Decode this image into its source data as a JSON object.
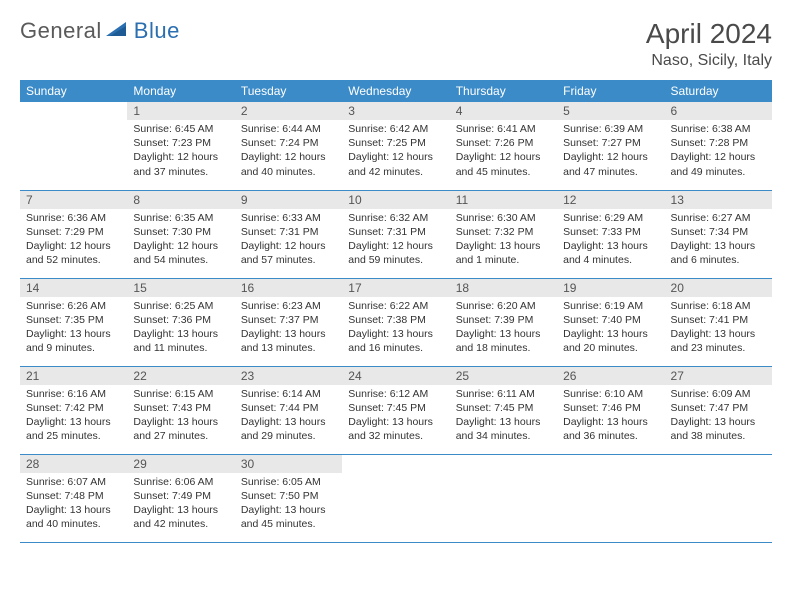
{
  "logo": {
    "text_a": "General",
    "text_b": "Blue"
  },
  "title": "April 2024",
  "location": "Naso, Sicily, Italy",
  "colors": {
    "header_bg": "#3b8bc9",
    "header_text": "#ffffff",
    "daynum_bg": "#e8e8e8",
    "daynum_text": "#555555",
    "body_text": "#333333",
    "rule": "#3b8bc9",
    "logo_gray": "#5a5a5a",
    "logo_blue": "#2b6fb0"
  },
  "day_labels": [
    "Sunday",
    "Monday",
    "Tuesday",
    "Wednesday",
    "Thursday",
    "Friday",
    "Saturday"
  ],
  "weeks": [
    [
      null,
      {
        "n": "1",
        "sr": "6:45 AM",
        "ss": "7:23 PM",
        "dl": "12 hours and 37 minutes."
      },
      {
        "n": "2",
        "sr": "6:44 AM",
        "ss": "7:24 PM",
        "dl": "12 hours and 40 minutes."
      },
      {
        "n": "3",
        "sr": "6:42 AM",
        "ss": "7:25 PM",
        "dl": "12 hours and 42 minutes."
      },
      {
        "n": "4",
        "sr": "6:41 AM",
        "ss": "7:26 PM",
        "dl": "12 hours and 45 minutes."
      },
      {
        "n": "5",
        "sr": "6:39 AM",
        "ss": "7:27 PM",
        "dl": "12 hours and 47 minutes."
      },
      {
        "n": "6",
        "sr": "6:38 AM",
        "ss": "7:28 PM",
        "dl": "12 hours and 49 minutes."
      }
    ],
    [
      {
        "n": "7",
        "sr": "6:36 AM",
        "ss": "7:29 PM",
        "dl": "12 hours and 52 minutes."
      },
      {
        "n": "8",
        "sr": "6:35 AM",
        "ss": "7:30 PM",
        "dl": "12 hours and 54 minutes."
      },
      {
        "n": "9",
        "sr": "6:33 AM",
        "ss": "7:31 PM",
        "dl": "12 hours and 57 minutes."
      },
      {
        "n": "10",
        "sr": "6:32 AM",
        "ss": "7:31 PM",
        "dl": "12 hours and 59 minutes."
      },
      {
        "n": "11",
        "sr": "6:30 AM",
        "ss": "7:32 PM",
        "dl": "13 hours and 1 minute."
      },
      {
        "n": "12",
        "sr": "6:29 AM",
        "ss": "7:33 PM",
        "dl": "13 hours and 4 minutes."
      },
      {
        "n": "13",
        "sr": "6:27 AM",
        "ss": "7:34 PM",
        "dl": "13 hours and 6 minutes."
      }
    ],
    [
      {
        "n": "14",
        "sr": "6:26 AM",
        "ss": "7:35 PM",
        "dl": "13 hours and 9 minutes."
      },
      {
        "n": "15",
        "sr": "6:25 AM",
        "ss": "7:36 PM",
        "dl": "13 hours and 11 minutes."
      },
      {
        "n": "16",
        "sr": "6:23 AM",
        "ss": "7:37 PM",
        "dl": "13 hours and 13 minutes."
      },
      {
        "n": "17",
        "sr": "6:22 AM",
        "ss": "7:38 PM",
        "dl": "13 hours and 16 minutes."
      },
      {
        "n": "18",
        "sr": "6:20 AM",
        "ss": "7:39 PM",
        "dl": "13 hours and 18 minutes."
      },
      {
        "n": "19",
        "sr": "6:19 AM",
        "ss": "7:40 PM",
        "dl": "13 hours and 20 minutes."
      },
      {
        "n": "20",
        "sr": "6:18 AM",
        "ss": "7:41 PM",
        "dl": "13 hours and 23 minutes."
      }
    ],
    [
      {
        "n": "21",
        "sr": "6:16 AM",
        "ss": "7:42 PM",
        "dl": "13 hours and 25 minutes."
      },
      {
        "n": "22",
        "sr": "6:15 AM",
        "ss": "7:43 PM",
        "dl": "13 hours and 27 minutes."
      },
      {
        "n": "23",
        "sr": "6:14 AM",
        "ss": "7:44 PM",
        "dl": "13 hours and 29 minutes."
      },
      {
        "n": "24",
        "sr": "6:12 AM",
        "ss": "7:45 PM",
        "dl": "13 hours and 32 minutes."
      },
      {
        "n": "25",
        "sr": "6:11 AM",
        "ss": "7:45 PM",
        "dl": "13 hours and 34 minutes."
      },
      {
        "n": "26",
        "sr": "6:10 AM",
        "ss": "7:46 PM",
        "dl": "13 hours and 36 minutes."
      },
      {
        "n": "27",
        "sr": "6:09 AM",
        "ss": "7:47 PM",
        "dl": "13 hours and 38 minutes."
      }
    ],
    [
      {
        "n": "28",
        "sr": "6:07 AM",
        "ss": "7:48 PM",
        "dl": "13 hours and 40 minutes."
      },
      {
        "n": "29",
        "sr": "6:06 AM",
        "ss": "7:49 PM",
        "dl": "13 hours and 42 minutes."
      },
      {
        "n": "30",
        "sr": "6:05 AM",
        "ss": "7:50 PM",
        "dl": "13 hours and 45 minutes."
      },
      null,
      null,
      null,
      null
    ]
  ],
  "labels": {
    "sunrise": "Sunrise:",
    "sunset": "Sunset:",
    "daylight": "Daylight:"
  }
}
